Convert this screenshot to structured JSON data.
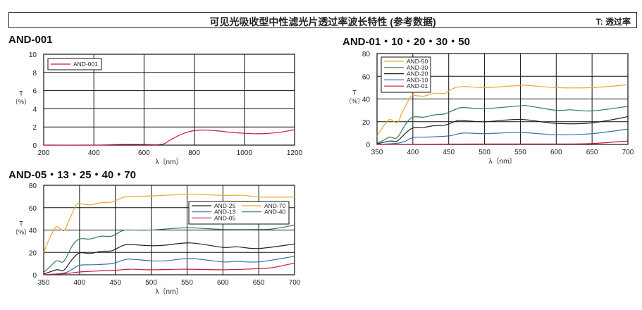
{
  "header": {
    "title": "可见光吸收型中性滤光片透过率波长特性 (参考数据)",
    "note": "T: 透过率"
  },
  "chart_data": [
    {
      "type": "line",
      "title": "AND-001",
      "xlabel": "λ〔nm〕",
      "ylabel": "T\n〔%〕",
      "ylabel_lines": [
        "T",
        "〔%〕"
      ],
      "xlim": [
        200,
        1200
      ],
      "ylim": [
        0,
        10
      ],
      "xticks": [
        200,
        400,
        600,
        800,
        1000,
        1200
      ],
      "yticks": [
        0,
        2,
        4,
        6,
        8,
        10
      ],
      "grid": true,
      "legend": "top-left",
      "series": [
        {
          "name": "AND-001",
          "color": "#c8183c",
          "x": [
            200,
            400,
            500,
            600,
            650,
            680,
            700,
            750,
            800,
            850,
            900,
            950,
            1000,
            1050,
            1100,
            1150,
            1200
          ],
          "y": [
            0,
            0,
            0.08,
            0.08,
            0.05,
            0.15,
            0.5,
            1.2,
            1.6,
            1.65,
            1.55,
            1.4,
            1.3,
            1.25,
            1.3,
            1.45,
            1.7
          ]
        }
      ]
    },
    {
      "type": "line",
      "title": "AND-01・10・20・30・50",
      "xlabel": "λ〔nm〕",
      "ylabel_lines": [
        "T",
        "〔%〕"
      ],
      "xlim": [
        350,
        700
      ],
      "ylim": [
        0,
        80
      ],
      "xticks": [
        350,
        400,
        450,
        500,
        550,
        600,
        650,
        700
      ],
      "yticks": [
        0,
        20,
        40,
        60,
        80
      ],
      "grid": true,
      "legend": "top-left",
      "series": [
        {
          "name": "AND-50",
          "color": "#f0a830",
          "x": [
            350,
            360,
            368,
            378,
            385,
            395,
            400,
            415,
            430,
            445,
            455,
            470,
            500,
            550,
            560,
            600,
            650,
            700
          ],
          "y": [
            7,
            17,
            22,
            19,
            28,
            40,
            43,
            42.5,
            45,
            45,
            49,
            51,
            50,
            52,
            52,
            50,
            50,
            52.5
          ]
        },
        {
          "name": "AND-30",
          "color": "#2e7d4f",
          "x": [
            350,
            360,
            368,
            378,
            390,
            400,
            415,
            430,
            445,
            460,
            470,
            500,
            550,
            560,
            600,
            620,
            650,
            700
          ],
          "y": [
            1,
            4,
            6.5,
            6,
            18,
            24,
            24,
            26,
            27,
            31,
            32.5,
            31.5,
            34,
            34,
            30,
            30.5,
            29.5,
            33.5
          ]
        },
        {
          "name": "AND-20",
          "color": "#222222",
          "x": [
            350,
            368,
            378,
            390,
            400,
            415,
            430,
            445,
            460,
            470,
            500,
            550,
            600,
            650,
            700
          ],
          "y": [
            0.5,
            3,
            3,
            10,
            14.5,
            15,
            16.5,
            17,
            20.5,
            21,
            20,
            22,
            18.5,
            19,
            24.5
          ]
        },
        {
          "name": "AND-10",
          "color": "#3a6fa8",
          "x": [
            350,
            378,
            390,
            400,
            420,
            450,
            470,
            500,
            550,
            600,
            650,
            700
          ],
          "y": [
            0,
            1,
            3,
            6,
            6.5,
            7.5,
            10,
            9.5,
            10.5,
            8.5,
            9.5,
            13.5
          ]
        },
        {
          "name": "AND-01",
          "color": "#c8183c",
          "x": [
            350,
            400,
            500,
            600,
            650,
            700
          ],
          "y": [
            0,
            0.2,
            0.4,
            0.4,
            0.8,
            3
          ]
        }
      ]
    },
    {
      "type": "line",
      "title": "AND-05・13・25・40・70",
      "xlabel": "λ〔nm〕",
      "ylabel_lines": [
        "T",
        "〔%〕"
      ],
      "xlim": [
        350,
        700
      ],
      "ylim": [
        0,
        80
      ],
      "xticks": [
        350,
        400,
        450,
        500,
        550,
        600,
        650,
        700
      ],
      "yticks": [
        0,
        20,
        40,
        60,
        80
      ],
      "grid": true,
      "legend": "right",
      "series": [
        {
          "name": "AND-25",
          "color": "#222222",
          "x": [
            350,
            368,
            378,
            390,
            400,
            415,
            430,
            445,
            460,
            470,
            500,
            520,
            555,
            600,
            620,
            650,
            700
          ],
          "y": [
            0.5,
            4.5,
            4,
            14,
            19.5,
            19,
            21,
            21.5,
            26,
            27,
            26,
            26.5,
            28.5,
            24.5,
            25,
            23.5,
            27.5
          ]
        },
        {
          "name": "AND-70",
          "color": "#f0a830",
          "x": [
            350,
            360,
            368,
            378,
            385,
            395,
            400,
            415,
            430,
            445,
            460,
            470,
            500,
            550,
            560,
            600,
            630,
            650,
            700
          ],
          "y": [
            20,
            35,
            43,
            39.5,
            48,
            62,
            63.5,
            62.5,
            64.5,
            65,
            69,
            70,
            70.5,
            72,
            72,
            71,
            71,
            69.5,
            69.5
          ]
        },
        {
          "name": "AND-13",
          "color": "#3a6fa8",
          "x": [
            350,
            378,
            390,
            400,
            420,
            445,
            460,
            470,
            500,
            520,
            555,
            600,
            620,
            650,
            700
          ],
          "y": [
            0,
            1.5,
            5,
            8.5,
            9,
            10,
            13,
            14,
            12.5,
            12.5,
            14.5,
            11.5,
            12,
            11.5,
            16.5
          ]
        },
        {
          "name": "AND-40",
          "color": "#2e7d4f",
          "x": [
            350,
            360,
            368,
            378,
            390,
            400,
            415,
            430,
            445,
            460,
            470,
            500,
            550,
            600,
            650,
            670,
            700
          ],
          "y": [
            2,
            8,
            12.5,
            12,
            26,
            32,
            32,
            34.5,
            34.5,
            39.5,
            40,
            40,
            42,
            40.5,
            40.5,
            41,
            44.5
          ]
        },
        {
          "name": "AND-05",
          "color": "#c8183c",
          "x": [
            350,
            380,
            400,
            430,
            450,
            470,
            500,
            550,
            600,
            650,
            670,
            700
          ],
          "y": [
            0,
            1,
            2.5,
            3.5,
            4,
            5,
            4.5,
            5,
            4.5,
            5.5,
            6.5,
            10.5
          ]
        }
      ]
    }
  ]
}
